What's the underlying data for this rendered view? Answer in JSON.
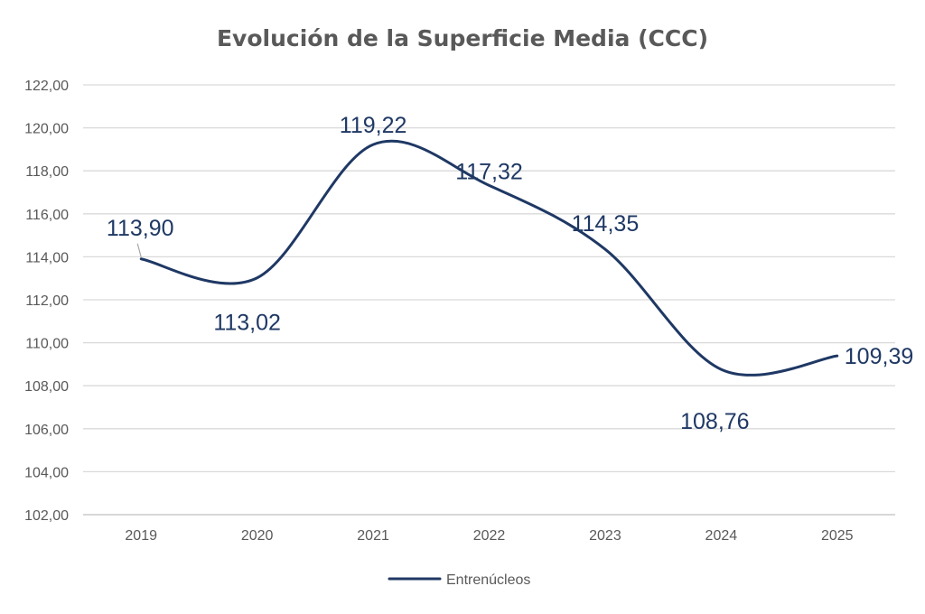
{
  "chart_data": {
    "type": "line",
    "title": "Evolución de la Superficie Media (CCC)",
    "xlabel": "",
    "ylabel": "",
    "categories": [
      "2019",
      "2020",
      "2021",
      "2022",
      "2023",
      "2024",
      "2025"
    ],
    "ylim": [
      102,
      122
    ],
    "ytick_step": 2,
    "ytick_labels": [
      "102,00",
      "104,00",
      "106,00",
      "108,00",
      "110,00",
      "112,00",
      "114,00",
      "116,00",
      "118,00",
      "120,00",
      "122,00"
    ],
    "grid": true,
    "legend_position": "bottom-center",
    "series": [
      {
        "name": "Entrenúcleos",
        "color": "#1f3864",
        "smooth": true,
        "values": [
          113.9,
          113.02,
          119.22,
          117.32,
          114.35,
          108.76,
          109.39
        ],
        "data_labels": [
          "113,90",
          "113,02",
          "119,22",
          "117,32",
          "114,35",
          "108,76",
          "109,39"
        ]
      }
    ]
  }
}
